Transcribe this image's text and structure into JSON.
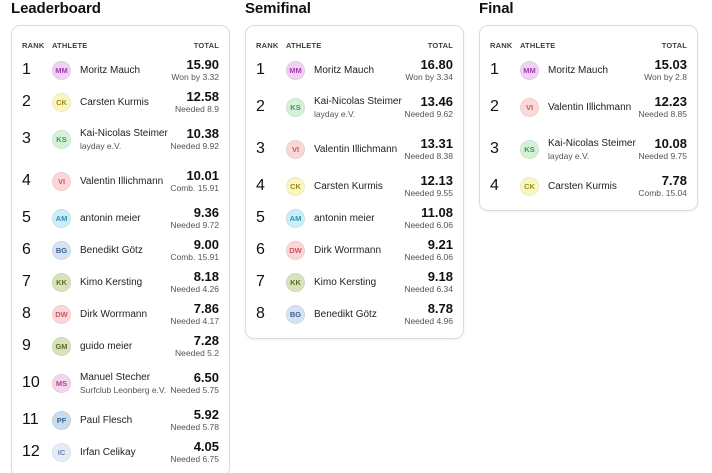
{
  "columns": {
    "rank": "RANK",
    "athlete": "ATHLETE",
    "total": "TOTAL"
  },
  "panels": [
    {
      "title": "Leaderboard",
      "rows": [
        {
          "rank": "1",
          "initials": "MM",
          "name": "Moritz Mauch",
          "club": "",
          "score": "15.90",
          "note": "Won by 3.32",
          "color": "purple"
        },
        {
          "rank": "2",
          "initials": "CK",
          "name": "Carsten Kurmis",
          "club": "",
          "score": "12.58",
          "note": "Needed 8.9",
          "color": "yellow"
        },
        {
          "rank": "3",
          "initials": "KS",
          "name": "Kai-Nicolas Steimer",
          "club": "layday e.V.",
          "score": "10.38",
          "note": "Needed 9.92",
          "color": "green"
        },
        {
          "rank": "4",
          "initials": "VI",
          "name": "Valentin Illichmann",
          "club": "",
          "score": "10.01",
          "note": "Comb. 15.91",
          "color": "red"
        },
        {
          "rank": "5",
          "initials": "AM",
          "name": "antonin meier",
          "club": "",
          "score": "9.36",
          "note": "Needed 9.72",
          "color": "cyan"
        },
        {
          "rank": "6",
          "initials": "BG",
          "name": "Benedikt Götz",
          "club": "",
          "score": "9.00",
          "note": "Comb. 15.91",
          "color": "blue"
        },
        {
          "rank": "7",
          "initials": "KK",
          "name": "Kimo Kersting",
          "club": "",
          "score": "8.18",
          "note": "Needed 4.26",
          "color": "olive"
        },
        {
          "rank": "8",
          "initials": "DW",
          "name": "Dirk Worrmann",
          "club": "",
          "score": "7.86",
          "note": "Needed 4.17",
          "color": "red"
        },
        {
          "rank": "9",
          "initials": "GM",
          "name": "guido meier",
          "club": "",
          "score": "7.28",
          "note": "Needed 5.2",
          "color": "olive"
        },
        {
          "rank": "10",
          "initials": "MS",
          "name": "Manuel Stecher",
          "club": "Surfclub Leonberg e.V.",
          "score": "6.50",
          "note": "Needed 5.75",
          "color": "pink"
        },
        {
          "rank": "11",
          "initials": "PF",
          "name": "Paul Flesch",
          "club": "",
          "score": "5.92",
          "note": "Needed 5.78",
          "color": "steel"
        },
        {
          "rank": "12",
          "initials": "IC",
          "name": "Irfan Celikay",
          "club": "",
          "score": "4.05",
          "note": "Needed 6.75",
          "color": "lightblue"
        }
      ]
    },
    {
      "title": "Semifinal",
      "rows": [
        {
          "rank": "1",
          "initials": "MM",
          "name": "Moritz Mauch",
          "club": "",
          "score": "16.80",
          "note": "Won by 3.34",
          "color": "purple"
        },
        {
          "rank": "2",
          "initials": "KS",
          "name": "Kai-Nicolas Steimer",
          "club": "layday e.V.",
          "score": "13.46",
          "note": "Needed 9.62",
          "color": "green"
        },
        {
          "rank": "3",
          "initials": "VI",
          "name": "Valentin Illichmann",
          "club": "",
          "score": "13.31",
          "note": "Needed 8.38",
          "color": "red"
        },
        {
          "rank": "4",
          "initials": "CK",
          "name": "Carsten Kurmis",
          "club": "",
          "score": "12.13",
          "note": "Needed 9.55",
          "color": "yellow"
        },
        {
          "rank": "5",
          "initials": "AM",
          "name": "antonin meier",
          "club": "",
          "score": "11.08",
          "note": "Needed 6.06",
          "color": "cyan"
        },
        {
          "rank": "6",
          "initials": "DW",
          "name": "Dirk Worrmann",
          "club": "",
          "score": "9.21",
          "note": "Needed 6.06",
          "color": "red"
        },
        {
          "rank": "7",
          "initials": "KK",
          "name": "Kimo Kersting",
          "club": "",
          "score": "9.18",
          "note": "Needed 6.34",
          "color": "olive"
        },
        {
          "rank": "8",
          "initials": "BG",
          "name": "Benedikt Götz",
          "club": "",
          "score": "8.78",
          "note": "Needed 4.96",
          "color": "blue"
        }
      ]
    },
    {
      "title": "Final",
      "rows": [
        {
          "rank": "1",
          "initials": "MM",
          "name": "Moritz Mauch",
          "club": "",
          "score": "15.03",
          "note": "Won by 2.8",
          "color": "purple"
        },
        {
          "rank": "2",
          "initials": "VI",
          "name": "Valentin Illichmann",
          "club": "",
          "score": "12.23",
          "note": "Needed 8.85",
          "color": "red"
        },
        {
          "rank": "3",
          "initials": "KS",
          "name": "Kai-Nicolas Steimer",
          "club": "layday e.V.",
          "score": "10.08",
          "note": "Needed 9.75",
          "color": "green"
        },
        {
          "rank": "4",
          "initials": "CK",
          "name": "Carsten Kurmis",
          "club": "",
          "score": "7.78",
          "note": "Comb. 15.04",
          "color": "yellow"
        }
      ]
    }
  ],
  "avatar_colors": {
    "purple": {
      "bg": "#f0d3f3",
      "fg": "#a13bb0"
    },
    "yellow": {
      "bg": "#faf6c4",
      "fg": "#9a8a10"
    },
    "green": {
      "bg": "#d5f2d8",
      "fg": "#3f9a4d"
    },
    "red": {
      "bg": "#fbd8d8",
      "fg": "#d0535a"
    },
    "cyan": {
      "bg": "#cdeef7",
      "fg": "#2a93b5"
    },
    "blue": {
      "bg": "#d6e3f5",
      "fg": "#3d5f93"
    },
    "olive": {
      "bg": "#d9e3bb",
      "fg": "#5d6d2c"
    },
    "pink": {
      "bg": "#f4d6ea",
      "fg": "#b1468f"
    },
    "steel": {
      "bg": "#c9dced",
      "fg": "#3b6489"
    },
    "lightblue": {
      "bg": "#e3ecf8",
      "fg": "#6c86aa"
    }
  }
}
